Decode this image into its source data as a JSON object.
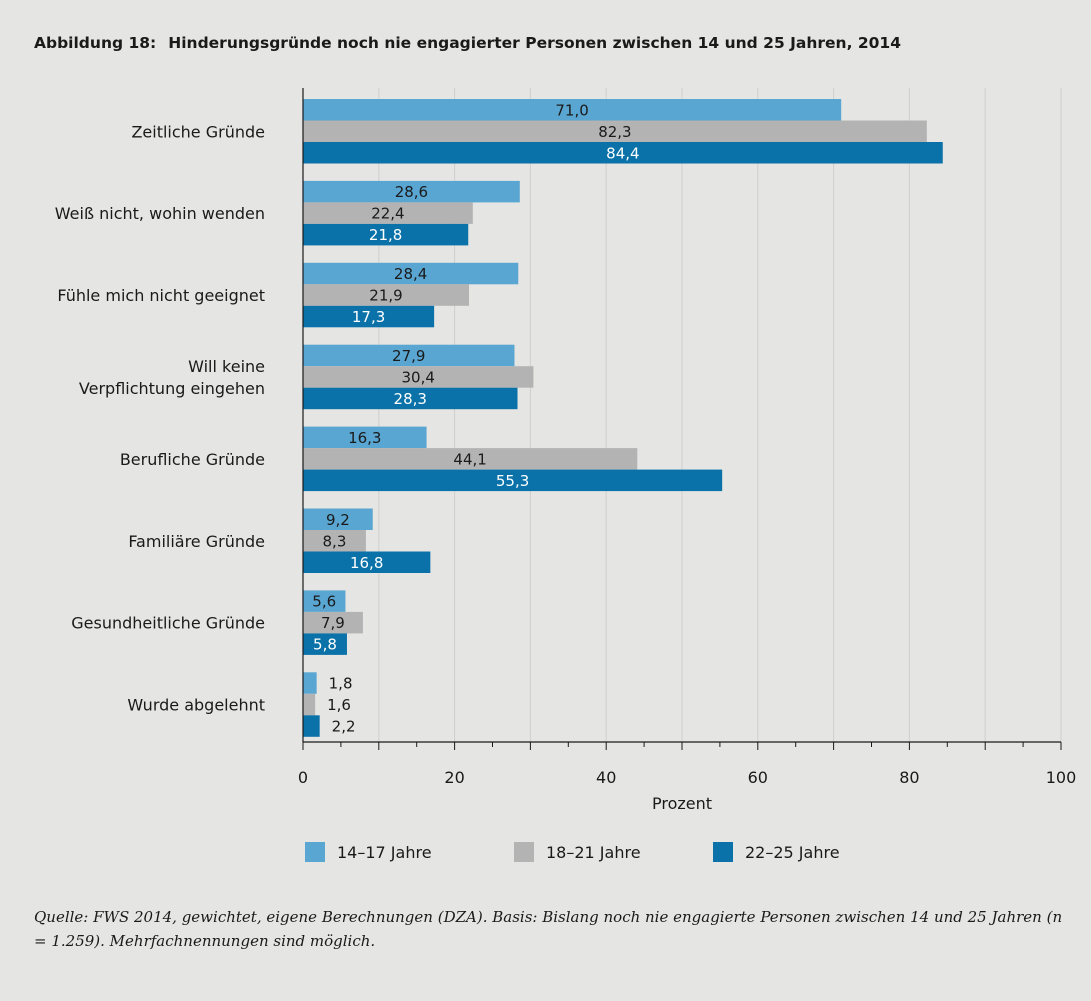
{
  "figure": {
    "number": "Abbildung 18:",
    "title": "Hinderungsgründe noch nie engagierter Personen zwischen 14 und 25 Jahren, 2014"
  },
  "source_note": "Quelle: FWS 2014, gewichtet, eigene Berechnungen (DZA). Basis: Bislang noch nie engagierte Personen zwischen 14 und 25 Jahren (n = 1.259). Mehrfachnennungen sind möglich.",
  "chart_data": {
    "type": "bar",
    "orientation": "horizontal",
    "categories": [
      "Zeitliche Gründe",
      "Weiß nicht, wohin wenden",
      "Fühle mich nicht geeignet",
      "Will keine Verpflichtung eingehen",
      "Berufliche Gründe",
      "Familiäre Gründe",
      "Gesundheitliche Gründe",
      "Wurde abgelehnt"
    ],
    "series": [
      {
        "name": "14–17 Jahre",
        "color": "#5aa6d2",
        "values": [
          71.0,
          28.6,
          28.4,
          27.9,
          16.3,
          9.2,
          5.6,
          1.8
        ],
        "labels": [
          "71,0",
          "28,6",
          "28,4",
          "27,9",
          "16,3",
          "9,2",
          "5,6",
          "1,8"
        ]
      },
      {
        "name": "18–21 Jahre",
        "color": "#b3b3b3",
        "values": [
          82.3,
          22.4,
          21.9,
          30.4,
          44.1,
          8.3,
          7.9,
          1.6
        ],
        "labels": [
          "82,3",
          "22,4",
          "21,9",
          "30,4",
          "44,1",
          "8,3",
          "7,9",
          "1,6"
        ]
      },
      {
        "name": "22–25 Jahre",
        "color": "#0a72a8",
        "values": [
          84.4,
          21.8,
          17.3,
          28.3,
          55.3,
          16.8,
          5.8,
          2.2
        ],
        "labels": [
          "84,4",
          "21,8",
          "17,3",
          "28,3",
          "55,3",
          "16,8",
          "5,8",
          "2,2"
        ]
      }
    ],
    "xlabel": "Prozent",
    "xlim": [
      0,
      100
    ],
    "xticks": [
      0,
      20,
      40,
      60,
      80,
      100
    ],
    "grid": true,
    "legend": "bottom"
  }
}
